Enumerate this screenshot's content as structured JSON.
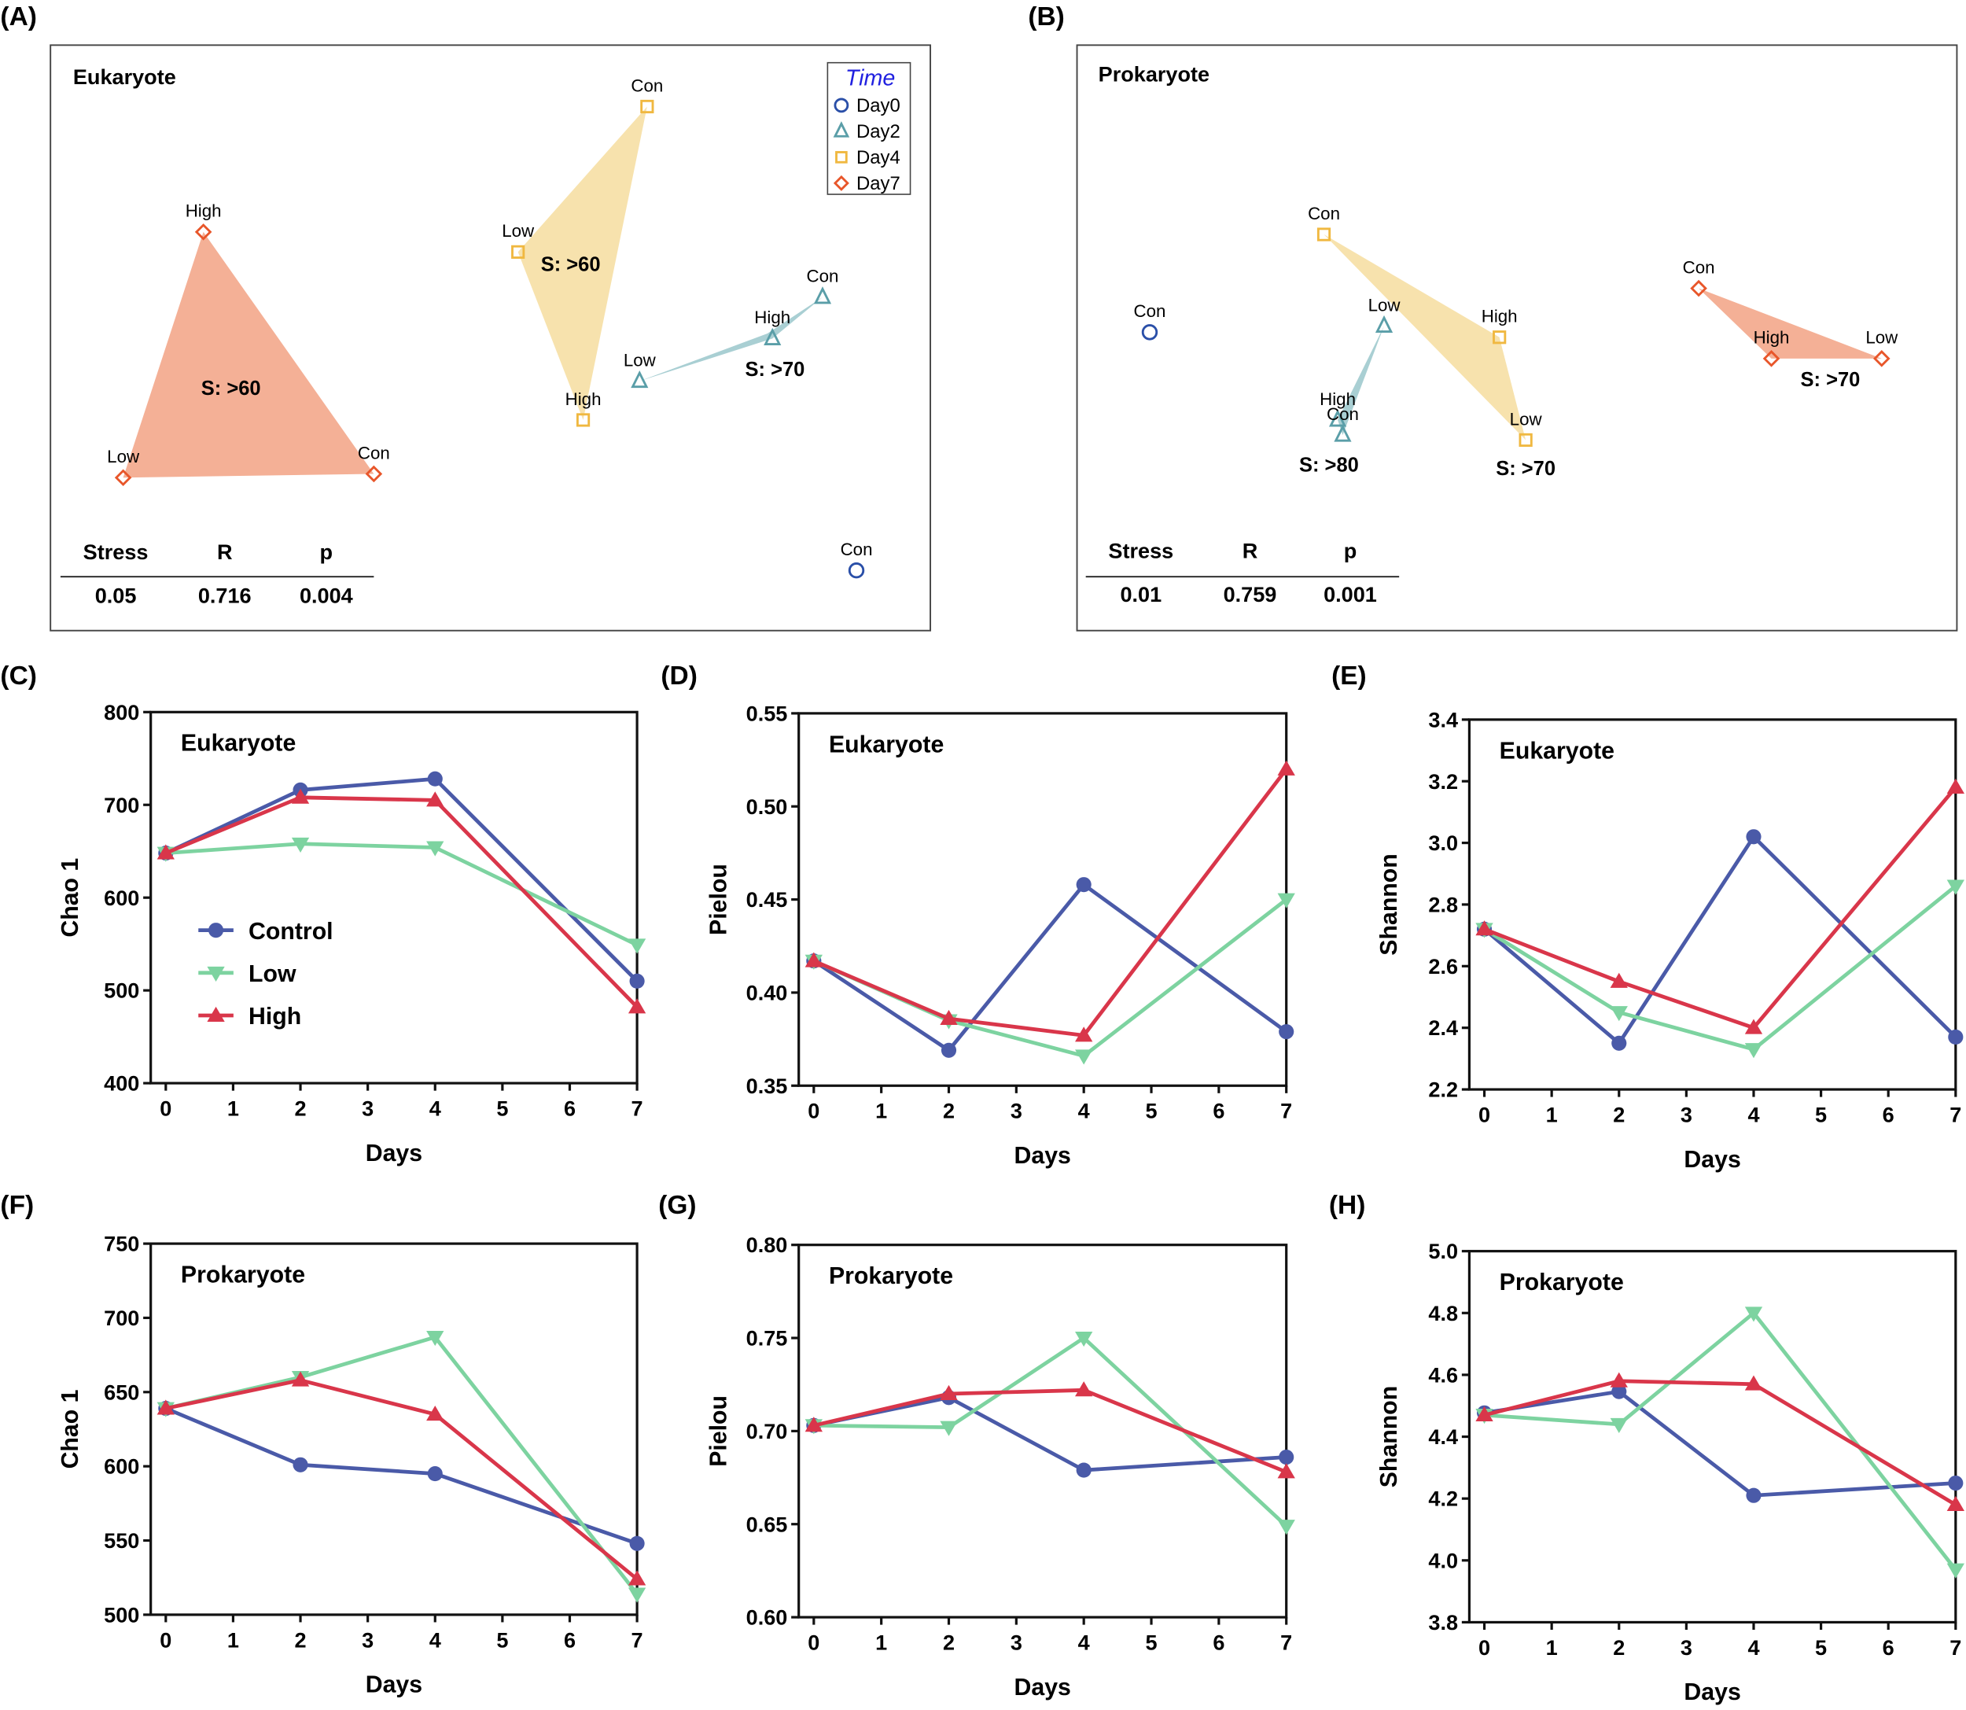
{
  "panel_labels": [
    "(A)",
    "(B)",
    "(C)",
    "(D)",
    "(E)",
    "(F)",
    "(G)",
    "(H)"
  ],
  "nmds": [
    {
      "title": "Eukaryote",
      "legend": {
        "title": "Time",
        "items": [
          "Day0",
          "Day2",
          "Day4",
          "Day7"
        ]
      },
      "points": [
        {
          "day": "Day7",
          "label": "High"
        },
        {
          "day": "Day7",
          "label": "Low"
        },
        {
          "day": "Day7",
          "label": "Con"
        },
        {
          "day": "Day4",
          "label": "Con"
        },
        {
          "day": "Day4",
          "label": "Low"
        },
        {
          "day": "Day4",
          "label": "High"
        },
        {
          "day": "Day2",
          "label": "Con"
        },
        {
          "day": "Day2",
          "label": "High"
        },
        {
          "day": "Day2",
          "label": "Low"
        },
        {
          "day": "Day0",
          "label": "Con"
        }
      ],
      "similarity_labels": [
        "S: >60",
        "S: >60",
        "S: >70"
      ],
      "stats": {
        "headers": [
          "Stress",
          "R",
          "p"
        ],
        "values": [
          "0.05",
          "0.716",
          "0.004"
        ]
      }
    },
    {
      "title": "Prokaryote",
      "points": [
        {
          "day": "Day0",
          "label": "Con"
        },
        {
          "day": "Day4",
          "label": "Con"
        },
        {
          "day": "Day4",
          "label": "High"
        },
        {
          "day": "Day4",
          "label": "Low"
        },
        {
          "day": "Day2",
          "label": "Low"
        },
        {
          "day": "Day2",
          "label": "High"
        },
        {
          "day": "Day2",
          "label": "Con"
        },
        {
          "day": "Day7",
          "label": "Con"
        },
        {
          "day": "Day7",
          "label": "High"
        },
        {
          "day": "Day7",
          "label": "Low"
        }
      ],
      "similarity_labels": [
        "S: >70",
        "S: >80",
        "S: >70"
      ],
      "stats": {
        "headers": [
          "Stress",
          "R",
          "p"
        ],
        "values": [
          "0.01",
          "0.759",
          "0.001"
        ]
      }
    }
  ],
  "colors": {
    "Day0": "#2a4fa8",
    "Day2": "#5a9ea8",
    "Day4": "#f0b840",
    "Day7": "#e8562a",
    "Control": "#4a5aa8",
    "Low": "#7dd3a0",
    "High": "#d9364a"
  },
  "legend": [
    "Control",
    "Low",
    "High"
  ],
  "chart_data": [
    {
      "type": "line",
      "title": "Eukaryote",
      "xlabel": "Days",
      "ylabel": "Chao 1",
      "xlim": [
        0,
        7
      ],
      "ylim": [
        400,
        800
      ],
      "yticks": [
        "400",
        "500",
        "600",
        "700",
        "800"
      ],
      "xticks": [
        "0",
        "1",
        "2",
        "3",
        "4",
        "5",
        "6",
        "7"
      ],
      "x": [
        0,
        2,
        4,
        7
      ],
      "series": [
        {
          "name": "Control",
          "values": [
            648,
            716,
            728,
            510
          ]
        },
        {
          "name": "Low",
          "values": [
            648,
            658,
            654,
            549
          ]
        },
        {
          "name": "High",
          "values": [
            648,
            708,
            705,
            482
          ]
        }
      ],
      "legend": "left"
    },
    {
      "type": "line",
      "title": "Eukaryote",
      "xlabel": "Days",
      "ylabel": "Pielou",
      "xlim": [
        0,
        7
      ],
      "ylim": [
        0.35,
        0.55
      ],
      "yticks": [
        "0.35",
        "0.40",
        "0.45",
        "0.50",
        "0.55"
      ],
      "xticks": [
        "0",
        "1",
        "2",
        "3",
        "4",
        "5",
        "6",
        "7"
      ],
      "x": [
        0,
        2,
        4,
        7
      ],
      "series": [
        {
          "name": "Control",
          "values": [
            0.417,
            0.369,
            0.458,
            0.379
          ]
        },
        {
          "name": "Low",
          "values": [
            0.417,
            0.385,
            0.366,
            0.45
          ]
        },
        {
          "name": "High",
          "values": [
            0.417,
            0.386,
            0.377,
            0.52
          ]
        }
      ]
    },
    {
      "type": "line",
      "title": "Eukaryote",
      "xlabel": "Days",
      "ylabel": "Shannon",
      "xlim": [
        0,
        7
      ],
      "ylim": [
        2.2,
        3.4
      ],
      "yticks": [
        "2.2",
        "2.4",
        "2.6",
        "2.8",
        "3.0",
        "3.2",
        "3.4"
      ],
      "xticks": [
        "0",
        "1",
        "2",
        "3",
        "4",
        "5",
        "6",
        "7"
      ],
      "x": [
        0,
        2,
        4,
        7
      ],
      "series": [
        {
          "name": "Control",
          "values": [
            2.72,
            2.35,
            3.02,
            2.37
          ]
        },
        {
          "name": "Low",
          "values": [
            2.72,
            2.45,
            2.33,
            2.86
          ]
        },
        {
          "name": "High",
          "values": [
            2.72,
            2.55,
            2.4,
            3.18
          ]
        }
      ]
    },
    {
      "type": "line",
      "title": "Prokaryote",
      "xlabel": "Days",
      "ylabel": "Chao 1",
      "xlim": [
        0,
        7
      ],
      "ylim": [
        500,
        750
      ],
      "yticks": [
        "500",
        "550",
        "600",
        "650",
        "700",
        "750"
      ],
      "xticks": [
        "0",
        "1",
        "2",
        "3",
        "4",
        "5",
        "6",
        "7"
      ],
      "x": [
        0,
        2,
        4,
        7
      ],
      "series": [
        {
          "name": "Control",
          "values": [
            639,
            601,
            595,
            548
          ]
        },
        {
          "name": "Low",
          "values": [
            639,
            660,
            687,
            514
          ]
        },
        {
          "name": "High",
          "values": [
            639,
            658,
            635,
            524
          ]
        }
      ]
    },
    {
      "type": "line",
      "title": "Prokaryote",
      "xlabel": "Days",
      "ylabel": "Pielou",
      "xlim": [
        0,
        7
      ],
      "ylim": [
        0.6,
        0.8
      ],
      "yticks": [
        "0.60",
        "0.65",
        "0.70",
        "0.75",
        "0.80"
      ],
      "xticks": [
        "0",
        "1",
        "2",
        "3",
        "4",
        "5",
        "6",
        "7"
      ],
      "x": [
        0,
        2,
        4,
        7
      ],
      "series": [
        {
          "name": "Control",
          "values": [
            0.703,
            0.718,
            0.679,
            0.686
          ]
        },
        {
          "name": "Low",
          "values": [
            0.703,
            0.702,
            0.75,
            0.649
          ]
        },
        {
          "name": "High",
          "values": [
            0.703,
            0.72,
            0.722,
            0.678
          ]
        }
      ]
    },
    {
      "type": "line",
      "title": "Prokaryote",
      "xlabel": "Days",
      "ylabel": "Shannon",
      "xlim": [
        0,
        7
      ],
      "ylim": [
        3.8,
        5.0
      ],
      "yticks": [
        "3.8",
        "4.0",
        "4.2",
        "4.4",
        "4.6",
        "4.8",
        "5.0"
      ],
      "xticks": [
        "0",
        "1",
        "2",
        "3",
        "4",
        "5",
        "6",
        "7"
      ],
      "x": [
        0,
        2,
        4,
        7
      ],
      "series": [
        {
          "name": "Control",
          "values": [
            4.477,
            4.546,
            4.21,
            4.25
          ]
        },
        {
          "name": "Low",
          "values": [
            4.47,
            4.44,
            4.8,
            3.97
          ]
        },
        {
          "name": "High",
          "values": [
            4.47,
            4.58,
            4.57,
            4.18
          ]
        }
      ]
    }
  ]
}
